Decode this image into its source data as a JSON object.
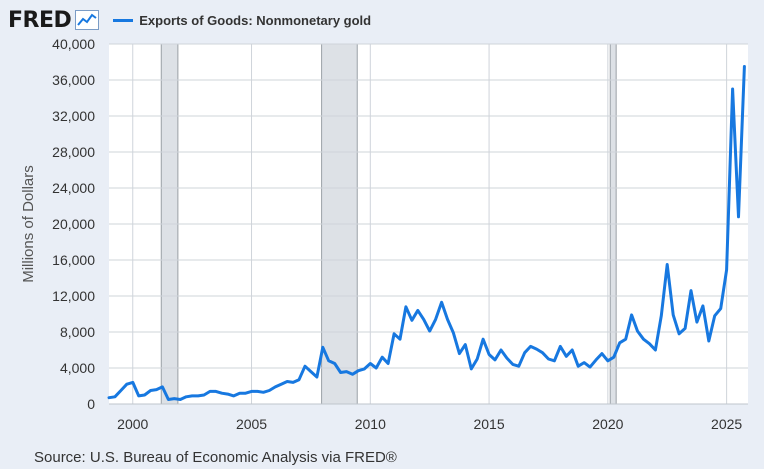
{
  "header": {
    "logo": "FRED",
    "logo_icon": "chart-line-icon"
  },
  "source": "Source: U.S. Bureau of Economic Analysis via FRED®",
  "colors": {
    "line": "#1778e0",
    "recession": "#dde1e6",
    "grid": "#cfd4da",
    "plot_bg": "#ffffff",
    "page_bg": "#e9eef6"
  },
  "chart_data": {
    "type": "line",
    "ylabel": "Millions of Dollars",
    "xlim": [
      1999.0,
      2025.9
    ],
    "ylim": [
      0,
      40000
    ],
    "yticks": [
      0,
      4000,
      8000,
      12000,
      16000,
      20000,
      24000,
      28000,
      32000,
      36000,
      40000
    ],
    "ytick_labels": [
      "0",
      "4,000",
      "8,000",
      "12,000",
      "16,000",
      "20,000",
      "24,000",
      "28,000",
      "32,000",
      "36,000",
      "40,000"
    ],
    "xticks": [
      2000,
      2005,
      2010,
      2015,
      2020,
      2025
    ],
    "xtick_labels": [
      "2000",
      "2005",
      "2010",
      "2015",
      "2020",
      "2025"
    ],
    "grid": true,
    "recessions": [
      [
        2001.2,
        2001.9
      ],
      [
        2007.95,
        2009.45
      ],
      [
        2020.1,
        2020.35
      ]
    ],
    "series": [
      {
        "name": "Exports of Goods: Nonmonetary gold",
        "x": [
          1999.0,
          1999.25,
          1999.5,
          1999.75,
          2000.0,
          2000.25,
          2000.5,
          2000.75,
          2001.0,
          2001.25,
          2001.5,
          2001.75,
          2002.0,
          2002.25,
          2002.5,
          2002.75,
          2003.0,
          2003.25,
          2003.5,
          2003.75,
          2004.0,
          2004.25,
          2004.5,
          2004.75,
          2005.0,
          2005.25,
          2005.5,
          2005.75,
          2006.0,
          2006.25,
          2006.5,
          2006.75,
          2007.0,
          2007.25,
          2007.5,
          2007.75,
          2008.0,
          2008.25,
          2008.5,
          2008.75,
          2009.0,
          2009.25,
          2009.5,
          2009.75,
          2010.0,
          2010.25,
          2010.5,
          2010.75,
          2011.0,
          2011.25,
          2011.5,
          2011.75,
          2012.0,
          2012.25,
          2012.5,
          2012.75,
          2013.0,
          2013.25,
          2013.5,
          2013.75,
          2014.0,
          2014.25,
          2014.5,
          2014.75,
          2015.0,
          2015.25,
          2015.5,
          2015.75,
          2016.0,
          2016.25,
          2016.5,
          2016.75,
          2017.0,
          2017.25,
          2017.5,
          2017.75,
          2018.0,
          2018.25,
          2018.5,
          2018.75,
          2019.0,
          2019.25,
          2019.5,
          2019.75,
          2020.0,
          2020.25,
          2020.5,
          2020.75,
          2021.0,
          2021.25,
          2021.5,
          2021.75,
          2022.0,
          2022.25,
          2022.5,
          2022.75,
          2023.0,
          2023.25,
          2023.5,
          2023.75,
          2024.0,
          2024.25,
          2024.5,
          2024.75,
          2025.0,
          2025.25,
          2025.5,
          2025.75
        ],
        "values": [
          700,
          800,
          1500,
          2200,
          2400,
          900,
          1000,
          1500,
          1600,
          1900,
          500,
          600,
          500,
          800,
          900,
          900,
          1000,
          1400,
          1400,
          1200,
          1100,
          900,
          1200,
          1200,
          1400,
          1400,
          1300,
          1500,
          1900,
          2200,
          2500,
          2400,
          2700,
          4200,
          3600,
          3000,
          6300,
          4800,
          4500,
          3500,
          3600,
          3300,
          3700,
          3900,
          4500,
          4000,
          5200,
          4500,
          7800,
          7200,
          10800,
          9300,
          10400,
          9400,
          8100,
          9400,
          11300,
          9400,
          7900,
          5600,
          6600,
          3900,
          5000,
          7200,
          5500,
          4900,
          6000,
          5100,
          4400,
          4200,
          5700,
          6400,
          6100,
          5700,
          5000,
          4800,
          6400,
          5300,
          6000,
          4200,
          4600,
          4100,
          4900,
          5600,
          4800,
          5200,
          6800,
          7200,
          9900,
          8100,
          7200,
          6700,
          6000,
          9800,
          15500,
          9900,
          7800,
          8400,
          12600,
          9100,
          10900,
          7000,
          9800,
          10600,
          14900,
          35000,
          20800,
          37500
        ]
      }
    ]
  }
}
